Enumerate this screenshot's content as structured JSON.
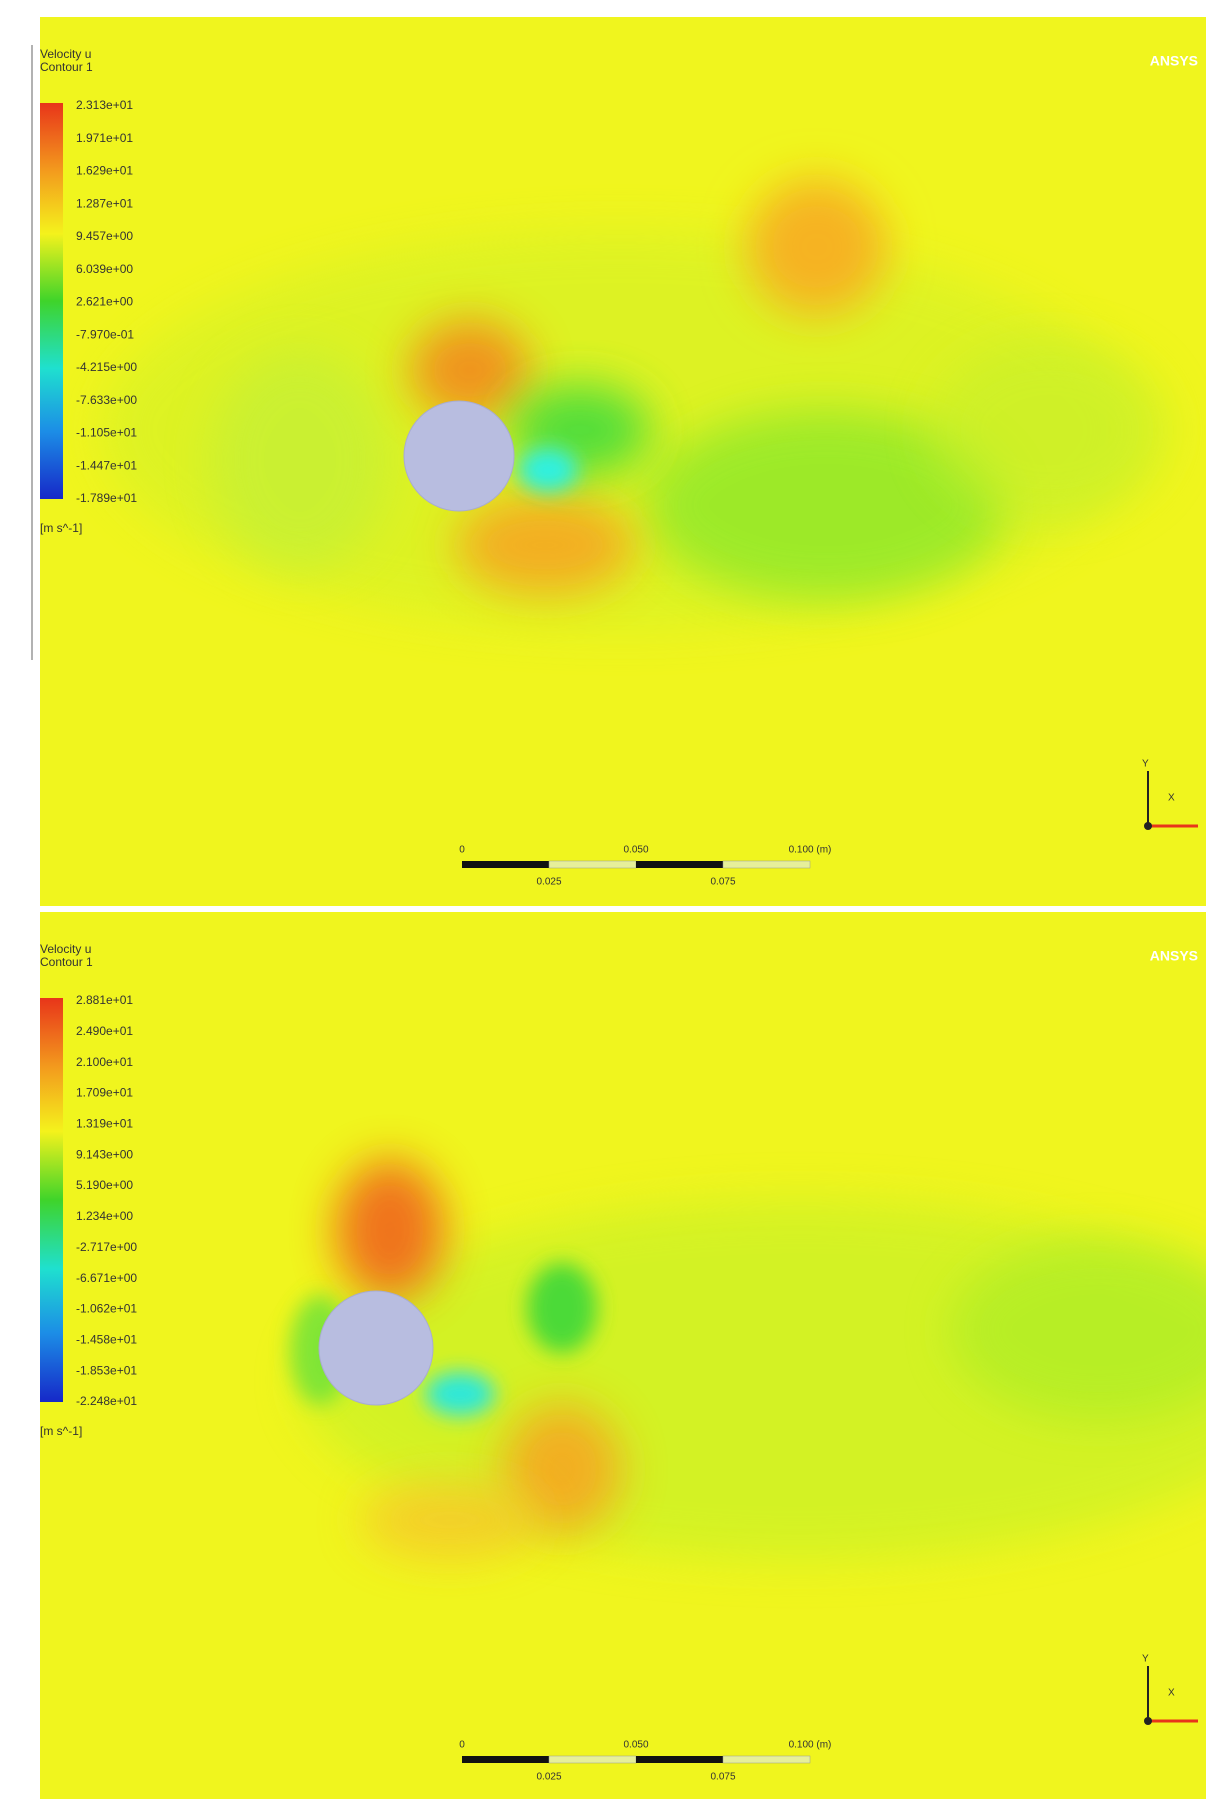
{
  "panels": [
    {
      "legend": {
        "title": [
          "Velocity u",
          "Contour 1"
        ],
        "labels": [
          "2.313e+01",
          "1.971e+01",
          "1.629e+01",
          "1.287e+01",
          "9.457e+00",
          "6.039e+00",
          "2.621e+00",
          "-7.970e-01",
          "-4.215e+00",
          "-7.633e+00",
          "-1.105e+01",
          "-1.447e+01",
          "-1.789e+01"
        ],
        "unit": "[m s^-1]"
      },
      "logo": "ANSYS",
      "scale_bar": [
        "0",
        "0.050",
        "0.100 (m)",
        "0.025",
        "0.075"
      ],
      "axes": [
        "Y",
        "X"
      ]
    },
    {
      "legend": {
        "title": [
          "Velocity u",
          "Contour 1"
        ],
        "labels": [
          "2.881e+01",
          "2.490e+01",
          "2.100e+01",
          "1.709e+01",
          "1.319e+01",
          "9.143e+00",
          "5.190e+00",
          "1.234e+00",
          "-2.717e+00",
          "-6.671e+00",
          "-1.062e+01",
          "-1.458e+01",
          "-1.853e+01",
          "-2.248e+01"
        ],
        "unit": "[m s^-1]"
      },
      "logo": "ANSYS",
      "scale_bar": [
        "0",
        "0.050",
        "0.100 (m)",
        "0.025",
        "0.075"
      ],
      "axes": [
        "Y",
        "X"
      ]
    }
  ]
}
